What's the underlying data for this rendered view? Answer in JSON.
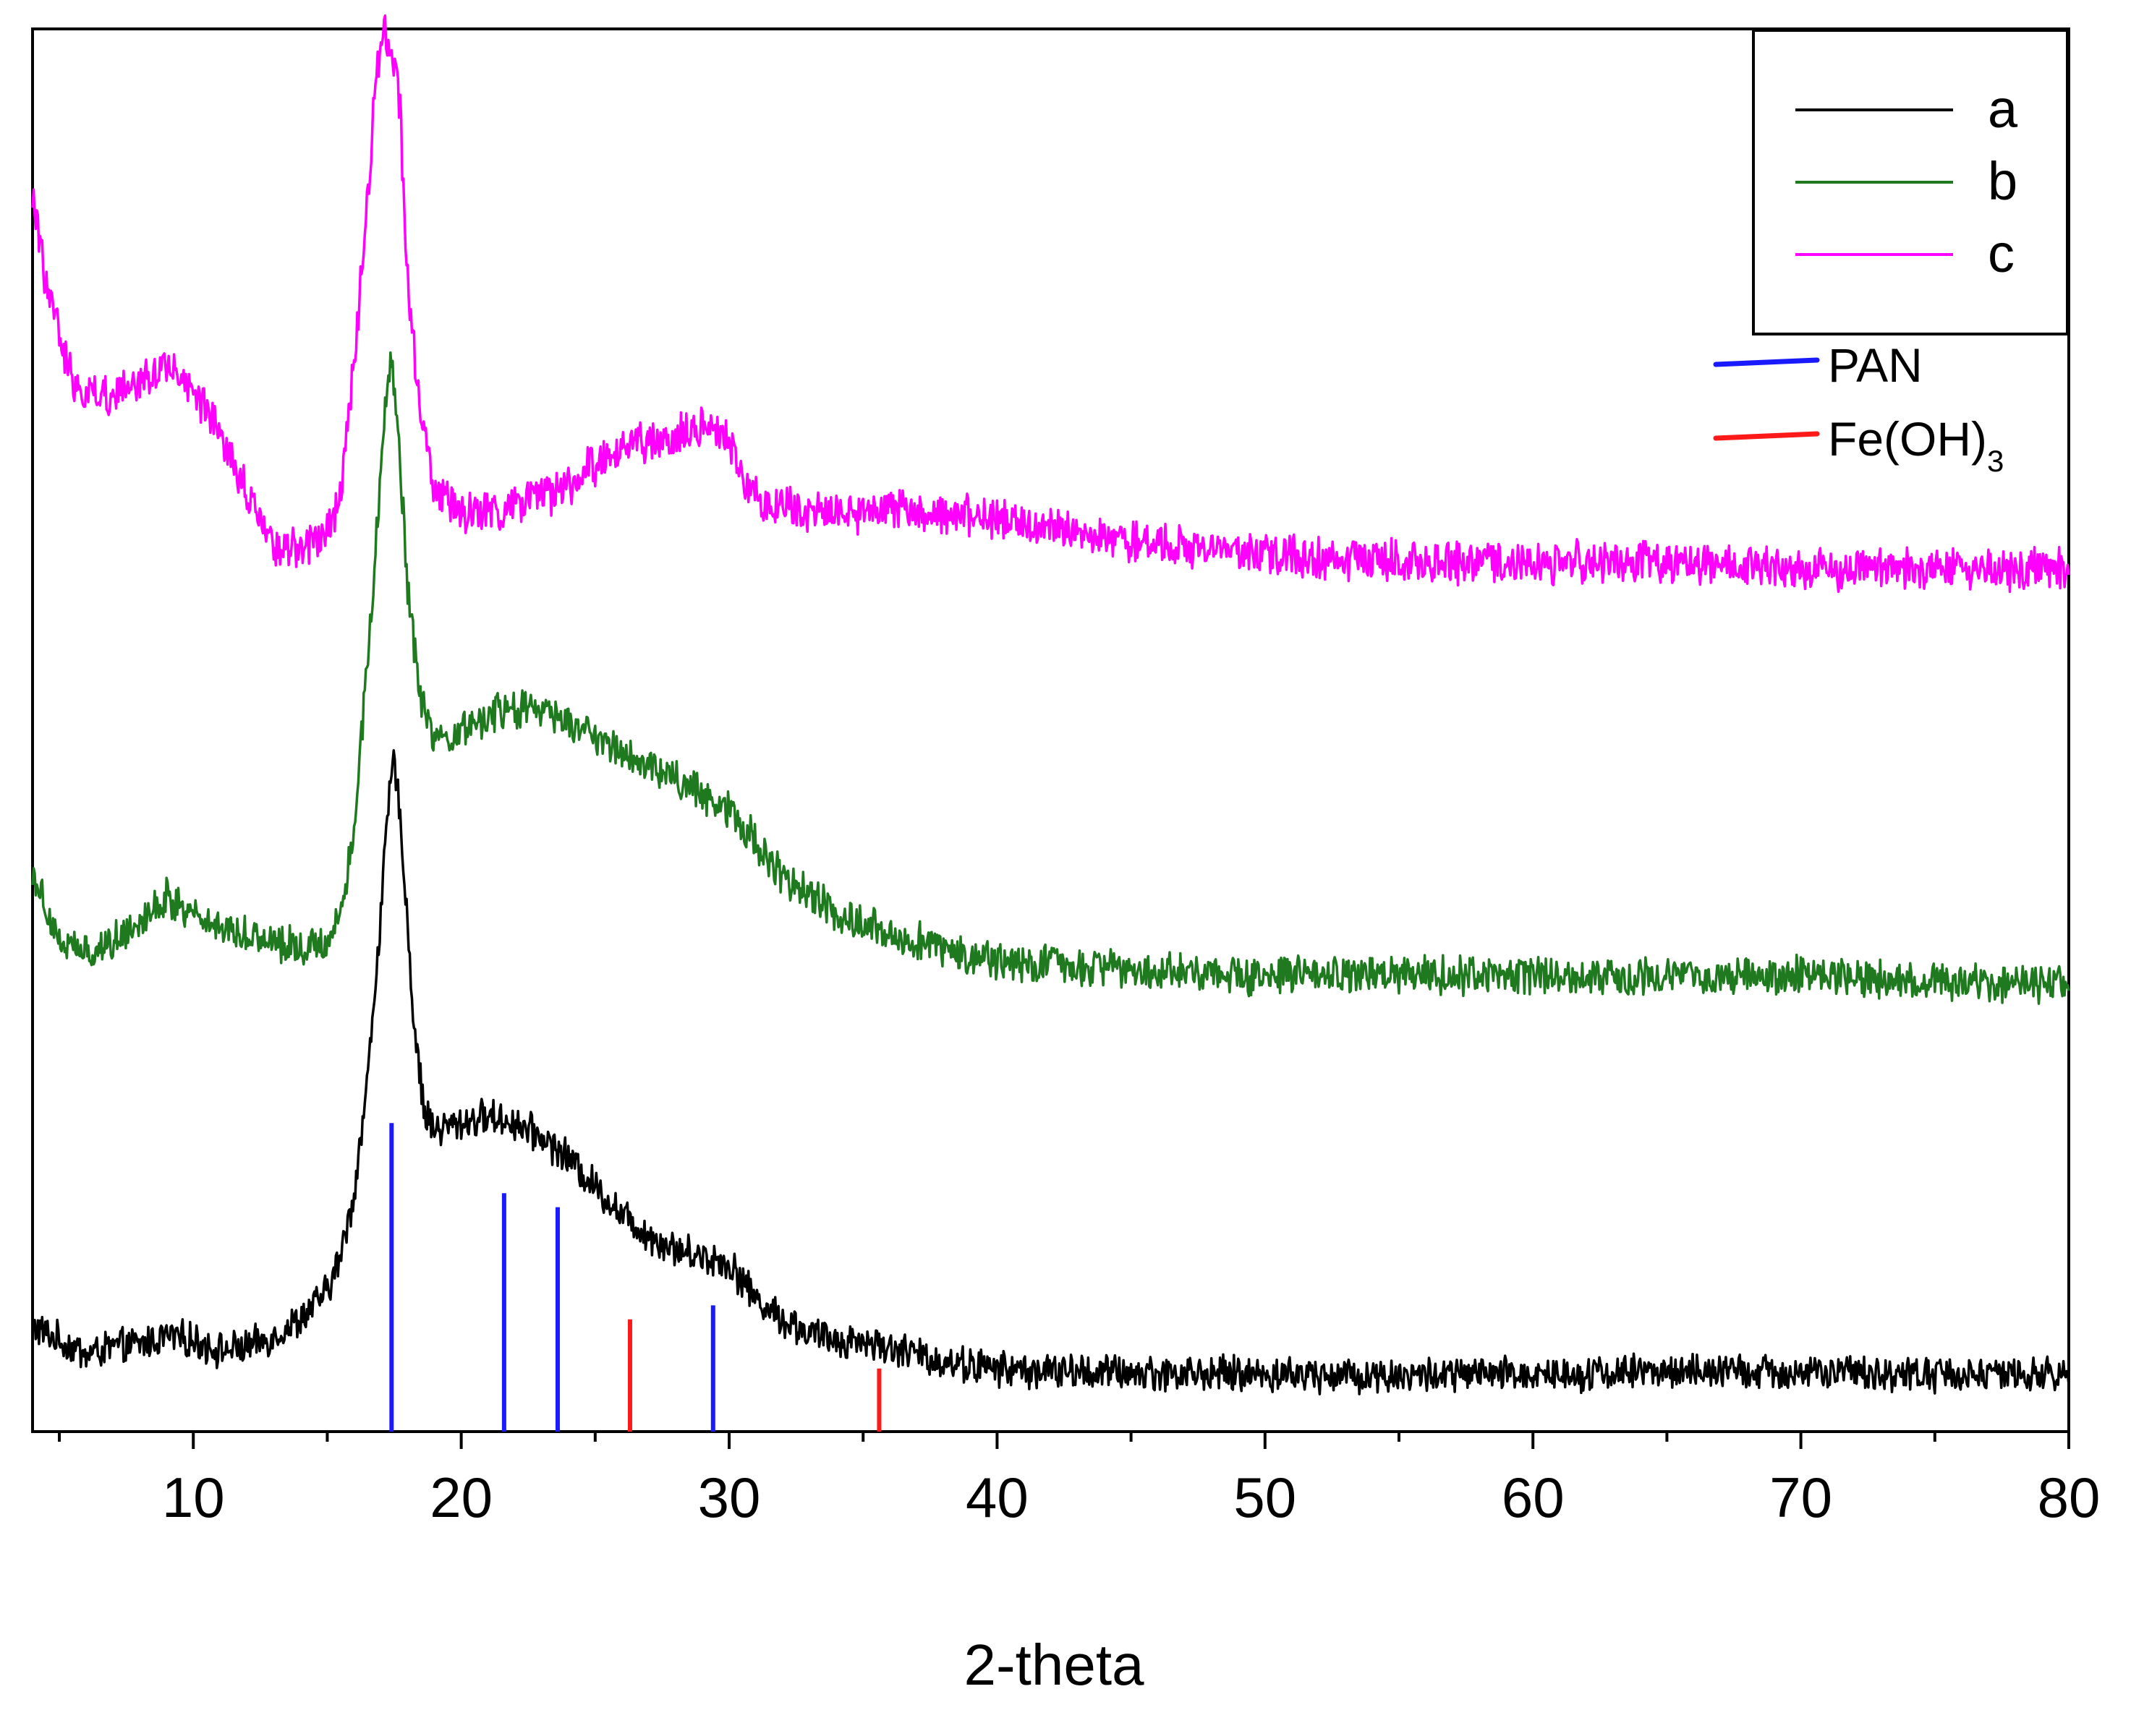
{
  "chart_data": {
    "type": "line",
    "title": "",
    "xlabel": "2-theta",
    "ylabel": "",
    "xlim": [
      4,
      80
    ],
    "ylim": [
      0,
      100
    ],
    "xticks": [
      10,
      20,
      30,
      40,
      50,
      60,
      70,
      80
    ],
    "yticks_shown": false,
    "grid": false,
    "legend": {
      "placement": "top-right",
      "entries": [
        {
          "label": "a",
          "color": "#000000"
        },
        {
          "label": "b",
          "color": "#1f7a1f"
        },
        {
          "label": "c",
          "color": "#ff00ff"
        }
      ]
    },
    "series": [
      {
        "name": "a",
        "color": "#000000",
        "noise": 1.1,
        "x": [
          4,
          5,
          6,
          7,
          8,
          9,
          10,
          11,
          12,
          13,
          14,
          15,
          15.5,
          16,
          16.5,
          17,
          17.3,
          17.5,
          17.8,
          18.2,
          18.6,
          19,
          20,
          21,
          22,
          23,
          24,
          25,
          26,
          27,
          28,
          29,
          30,
          31,
          32,
          33,
          34,
          35,
          36,
          37,
          38,
          40,
          42,
          45,
          50,
          55,
          60,
          65,
          70,
          75,
          80
        ],
        "y": [
          7.5,
          6.5,
          5.5,
          6,
          6.2,
          6.8,
          6.5,
          5.8,
          6,
          6.8,
          8,
          10,
          12.5,
          17,
          25,
          37,
          45,
          48,
          42,
          30,
          23,
          21.5,
          22,
          22.5,
          22,
          21,
          19.5,
          17.5,
          15.5,
          14,
          13,
          12.5,
          12,
          9.5,
          8,
          7,
          6.5,
          6.5,
          6,
          5.5,
          5,
          4.5,
          4.3,
          4.2,
          4.1,
          4,
          4.1,
          4.3,
          4.2,
          4.1,
          4
        ]
      },
      {
        "name": "b",
        "color": "#1f7a1f",
        "noise": 1.2,
        "x": [
          4,
          5,
          6,
          7,
          8,
          9,
          10,
          11,
          12,
          13,
          14,
          15,
          15.5,
          16,
          16.5,
          17,
          17.2,
          17.4,
          17.7,
          18,
          18.5,
          19,
          19.5,
          20,
          21,
          22,
          23,
          24,
          25,
          26,
          27,
          28,
          29,
          30,
          31,
          32,
          34,
          36,
          38,
          40,
          45,
          50,
          55,
          60,
          65,
          70,
          75,
          80
        ],
        "y": [
          40,
          35,
          34,
          35,
          36.5,
          38,
          37,
          36,
          35.5,
          35,
          34.5,
          35,
          37,
          43,
          55,
          68,
          74,
          76,
          70,
          60,
          52,
          49,
          49,
          50,
          51,
          51.5,
          51.5,
          50.5,
          49.5,
          48.5,
          47.5,
          46.5,
          45.5,
          44.5,
          42,
          39.5,
          37,
          35.5,
          34.5,
          33.5,
          33,
          32.5,
          32.5,
          32.5,
          32.5,
          32.5,
          32,
          32
        ]
      },
      {
        "name": "c",
        "color": "#ff00ff",
        "noise": 1.3,
        "x": [
          4,
          4.5,
          5,
          5.5,
          6,
          7,
          8,
          9,
          10,
          11,
          12,
          13,
          14,
          15,
          15.5,
          16,
          16.5,
          16.8,
          17.1,
          17.4,
          17.7,
          18,
          18.5,
          19,
          20,
          21,
          22,
          23,
          24,
          25,
          26,
          27,
          28,
          29,
          30,
          31,
          33,
          35,
          36,
          38,
          40,
          45,
          50,
          55,
          60,
          65,
          70,
          75,
          80
        ],
        "y": [
          88,
          82,
          78,
          75,
          74,
          74,
          75,
          76,
          74,
          71,
          67,
          63,
          63,
          64,
          67,
          76,
          88,
          96,
          100,
          99,
          95,
          82,
          72,
          67,
          65.5,
          65.5,
          66,
          66.5,
          67.5,
          69,
          70,
          70.5,
          71,
          71.5,
          70.5,
          66.5,
          65.5,
          65.5,
          66,
          65.5,
          65,
          63.5,
          62.5,
          62,
          62,
          62,
          61.5,
          61.5,
          61.5
        ]
      }
    ],
    "reference_patterns": [
      {
        "name": "PAN",
        "color": "#1a1aff",
        "lines": [
          {
            "x": 17.4,
            "y": 22
          },
          {
            "x": 21.6,
            "y": 17
          },
          {
            "x": 23.6,
            "y": 16
          },
          {
            "x": 29.4,
            "y": 9
          }
        ]
      },
      {
        "name": "Fe(OH)3",
        "label_main": "Fe(OH)",
        "label_sub": "3",
        "color": "#ff1a1a",
        "lines": [
          {
            "x": 26.3,
            "y": 8
          },
          {
            "x": 35.6,
            "y": 4.5
          }
        ]
      }
    ]
  }
}
